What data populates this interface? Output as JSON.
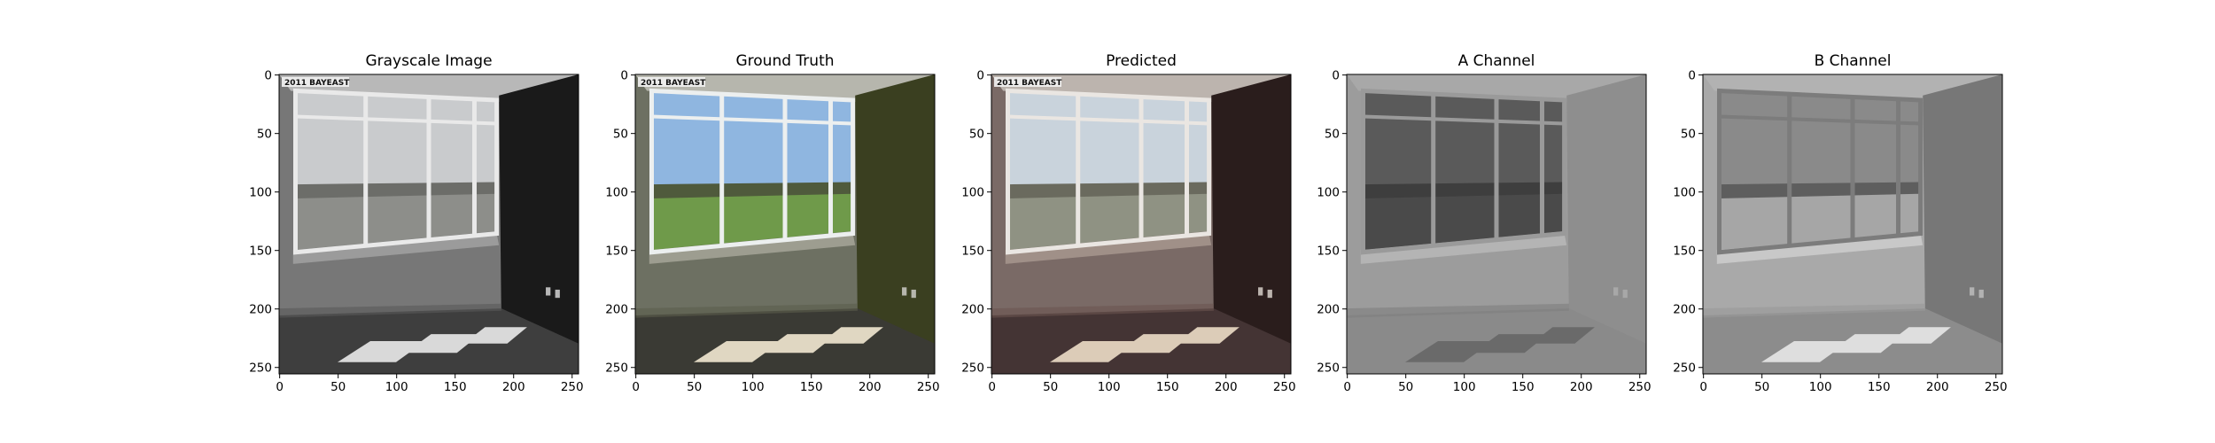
{
  "figure": {
    "panels": [
      {
        "key": "gray",
        "title": "Grayscale Image",
        "overlay_logo": "2011 BAYEAST",
        "palette": {
          "sky": "#c9cbcd",
          "field": "#8d8e8a",
          "trees": "#6c6d69",
          "wallL": "#777777",
          "wallR": "#1a1a1a",
          "ceiling": "#b8b8b8",
          "floor": "#3e3e3e",
          "sill": "#9b9b9b",
          "frame": "#e9e9e9",
          "patch": "#d9d9d9",
          "ground": "#5a5a5a"
        }
      },
      {
        "key": "gt",
        "title": "Ground Truth",
        "overlay_logo": "2011 BAYEAST",
        "palette": {
          "sky": "#8fb6e0",
          "field": "#6f9a4a",
          "trees": "#4f5a3c",
          "wallL": "#6d7062",
          "wallR": "#3a3f20",
          "ceiling": "#b6b6ad",
          "floor": "#3a3a34",
          "sill": "#9d9d90",
          "frame": "#ecefef",
          "patch": "#e0d7c2",
          "ground": "#5b5d4c"
        }
      },
      {
        "key": "pred",
        "title": "Predicted",
        "overlay_logo": "2011 BAYEAST",
        "palette": {
          "sky": "#c9d3dc",
          "field": "#8f9283",
          "trees": "#6a6a5e",
          "wallL": "#7a6a66",
          "wallR": "#2a1d1c",
          "ceiling": "#bcb4ae",
          "floor": "#443434",
          "sill": "#a09088",
          "frame": "#eae6e2",
          "patch": "#dcccb8",
          "ground": "#6b5550"
        }
      },
      {
        "key": "achan",
        "title": "A Channel",
        "overlay_logo": "",
        "palette": {
          "sky": "#5a5a5a",
          "field": "#4a4a4a",
          "trees": "#3e3e3e",
          "wallL": "#9c9c9c",
          "wallR": "#8e8e8e",
          "ceiling": "#a8a8a8",
          "floor": "#8a8a8a",
          "sill": "#b4b4b4",
          "frame": "#9a9a9a",
          "patch": "#6a6a6a",
          "ground": "#7e7e7e"
        }
      },
      {
        "key": "bchan",
        "title": "B Channel",
        "overlay_logo": "",
        "palette": {
          "sky": "#8a8a8a",
          "field": "#a6a6a6",
          "trees": "#5e5e5e",
          "wallL": "#a9a9a9",
          "wallR": "#777777",
          "ceiling": "#b2b2b2",
          "floor": "#8c8c8c",
          "sill": "#c8c8c8",
          "frame": "#7c7c7c",
          "patch": "#dedede",
          "ground": "#999999"
        }
      }
    ],
    "x_ticks": [
      "0",
      "50",
      "100",
      "150",
      "200",
      "250"
    ],
    "y_ticks": [
      "0",
      "50",
      "100",
      "150",
      "200",
      "250"
    ]
  }
}
